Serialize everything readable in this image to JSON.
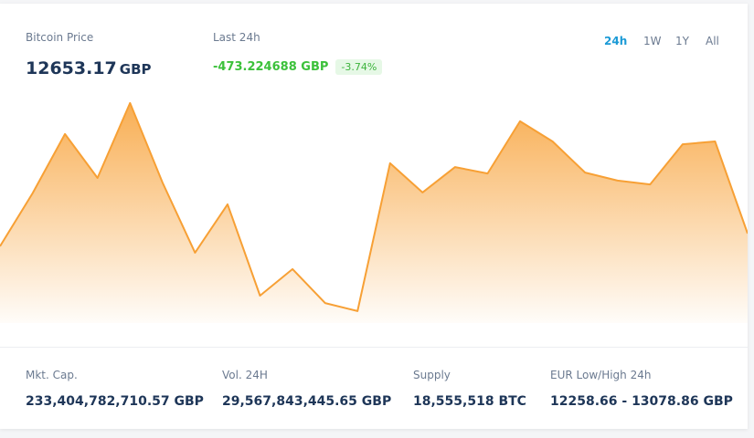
{
  "header": {
    "price_label": "Bitcoin Price",
    "price": "12653.17",
    "currency": "GBP",
    "change_label": "Last 24h",
    "change": "-473.224688 GBP",
    "change_percent": "-3.74%",
    "tabs": [
      "24h",
      "1W",
      "1Y",
      "All"
    ]
  },
  "chart_data": {
    "type": "area",
    "color": "#f7a035",
    "values": [
      12608,
      12831,
      13081,
      12896,
      13212,
      12877,
      12581,
      12785,
      12400,
      12512,
      12369,
      12335,
      12958,
      12835,
      12942,
      12915,
      13135,
      13050,
      12919,
      12885,
      12869,
      13038,
      13050,
      12662
    ],
    "ylim": [
      12300,
      13300
    ]
  },
  "stats": [
    {
      "label": "Mkt. Cap.",
      "value": "233,404,782,710.57 GBP"
    },
    {
      "label": "Vol. 24H",
      "value": "29,567,843,445.65 GBP"
    },
    {
      "label": "Supply",
      "value": "18,555,518 BTC"
    },
    {
      "label": "EUR Low/High 24h",
      "value": "12258.66 - 13078.86 GBP"
    }
  ]
}
